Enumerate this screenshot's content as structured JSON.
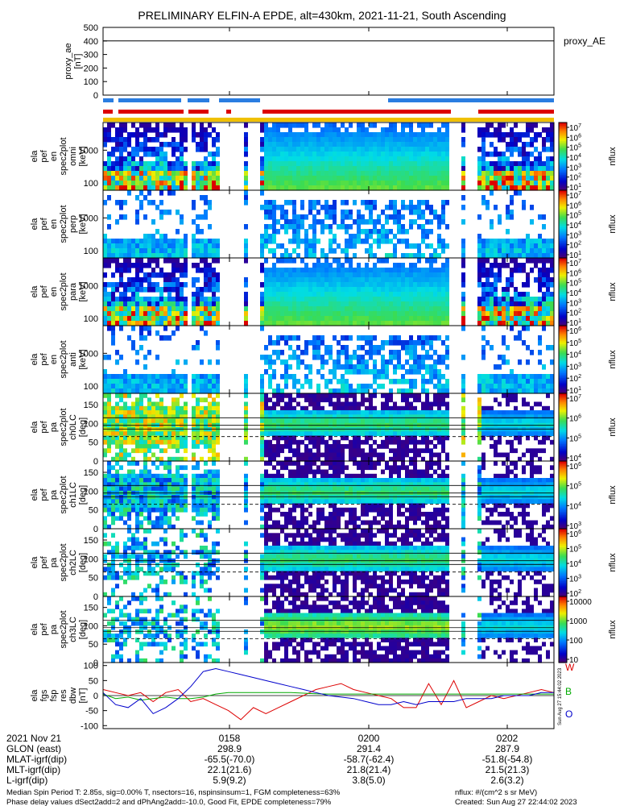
{
  "title": "PRELIMINARY ELFIN-A EPDE, alt=430km, 2021-11-21, South Ascending",
  "chart_data": {
    "type": "heatmap",
    "title": "PRELIMINARY ELFIN-A EPDE, alt=430km, 2021-11-21, South Ascending",
    "x_time_ticks": [
      "0158",
      "0200",
      "0202"
    ],
    "panels": [
      {
        "id": "proxy-ae",
        "type": "line",
        "ylabel": [
          "proxy_ae",
          "[nT]"
        ],
        "yticks": [
          "500",
          "400",
          "300",
          "200",
          "100",
          "0"
        ],
        "ylim": [
          0,
          500
        ],
        "legend": "proxy_AE",
        "values": [
          400,
          400,
          400,
          400,
          400,
          400,
          400,
          400,
          400,
          400
        ]
      },
      {
        "id": "en-omni",
        "ylabel": [
          "ela",
          "pef",
          "en",
          "spec2plot",
          "omni",
          "[keV]"
        ],
        "yticks": [
          "1000",
          "100"
        ],
        "log": true,
        "ylim": [
          60,
          7000
        ]
      },
      {
        "id": "en-perp",
        "ylabel": [
          "ela",
          "pef",
          "en",
          "spec2plot",
          "perp",
          "[keV]"
        ],
        "yticks": [
          "1000",
          "100"
        ],
        "log": true,
        "ylim": [
          60,
          7000
        ]
      },
      {
        "id": "en-para",
        "ylabel": [
          "ela",
          "pef",
          "en",
          "spec2plot",
          "para",
          "[keV]"
        ],
        "yticks": [
          "1000",
          "100"
        ],
        "log": true,
        "ylim": [
          60,
          7000
        ]
      },
      {
        "id": "en-anti",
        "ylabel": [
          "ela",
          "pef",
          "en",
          "spec2plot",
          "anti",
          "[keV]"
        ],
        "yticks": [
          "1000",
          "100"
        ],
        "log": true,
        "ylim": [
          60,
          7000
        ]
      },
      {
        "id": "ch0lc",
        "ylabel": [
          "ela",
          "pef",
          "pa",
          "spec2plot",
          "ch0LC",
          "[deg]"
        ],
        "yticks": [
          "150",
          "100",
          "50",
          "0"
        ],
        "ylim": [
          0,
          180
        ]
      },
      {
        "id": "ch1lc",
        "ylabel": [
          "ela",
          "pef",
          "pa",
          "spec2plot",
          "ch1LC",
          "[deg]"
        ],
        "yticks": [
          "150",
          "100",
          "50",
          "0"
        ],
        "ylim": [
          0,
          180
        ]
      },
      {
        "id": "ch2lc",
        "ylabel": [
          "ela",
          "pef",
          "pa",
          "spec2plot",
          "ch2LC",
          "[deg]"
        ],
        "yticks": [
          "150",
          "100",
          "50",
          "0"
        ],
        "ylim": [
          0,
          180
        ]
      },
      {
        "id": "ch3lc",
        "ylabel": [
          "ela",
          "pef",
          "pa",
          "spec2plot",
          "ch3LC",
          "[deg]"
        ],
        "yticks": [
          "150",
          "100",
          "50",
          "0"
        ],
        "ylim": [
          0,
          180
        ]
      },
      {
        "id": "fgs",
        "type": "line",
        "ylabel": [
          "ela",
          "fgs",
          "fsp",
          "res",
          "dbw",
          "[nT]"
        ],
        "yticks": [
          "100",
          "50",
          "0",
          "-50",
          "-100"
        ],
        "ylim": [
          -110,
          110
        ],
        "series": [
          {
            "name": "W",
            "color": "#dd0000",
            "values": [
              20,
              10,
              0,
              10,
              -20,
              10,
              20,
              -20,
              -10,
              -30,
              -50,
              -80,
              -40,
              -60,
              -40,
              -20,
              0,
              20,
              30,
              40,
              20,
              10,
              0,
              -10,
              -40,
              -40,
              40,
              -30,
              50,
              -40,
              -20,
              0,
              -10,
              0,
              10,
              20,
              10
            ]
          },
          {
            "name": "B",
            "color": "#00aa00",
            "values": [
              5,
              -10,
              -5,
              -15,
              -10,
              -5,
              -10,
              -10,
              -5,
              5,
              10,
              10,
              10,
              10,
              10,
              10,
              8,
              6,
              5,
              5,
              5,
              5,
              5,
              5,
              5,
              5,
              5,
              5,
              5,
              5,
              5,
              5,
              5,
              5,
              5,
              5,
              5
            ]
          },
          {
            "name": "O",
            "color": "#0000cc",
            "values": [
              10,
              -30,
              -40,
              -10,
              -60,
              -40,
              -10,
              30,
              80,
              90,
              80,
              70,
              60,
              50,
              40,
              30,
              20,
              10,
              0,
              -5,
              -10,
              -20,
              -30,
              -30,
              -20,
              -30,
              -20,
              -20,
              -20,
              -10,
              -10,
              -10,
              0,
              0,
              0,
              10,
              10
            ]
          }
        ]
      }
    ],
    "colorbars": [
      {
        "panel": "en-omni",
        "label": "nflux",
        "ticks": [
          "10^7",
          "10^6",
          "10^5",
          "10^4",
          "10^3",
          "10^2",
          "10^1"
        ]
      },
      {
        "panel": "en-perp",
        "label": "nflux",
        "ticks": [
          "10^7",
          "10^6",
          "10^5",
          "10^4",
          "10^3",
          "10^2",
          "10^1"
        ]
      },
      {
        "panel": "en-para",
        "label": "nflux",
        "ticks": [
          "10^7",
          "10^6",
          "10^5",
          "10^4",
          "10^3",
          "10^2",
          "10^1"
        ]
      },
      {
        "panel": "en-anti",
        "label": "nflux",
        "ticks": [
          "10^6",
          "10^5",
          "10^4",
          "10^3",
          "10^2",
          "10^1"
        ]
      },
      {
        "panel": "ch0lc",
        "label": "nflux",
        "ticks": [
          "10^7",
          "10^6",
          "10^5",
          "10^4"
        ]
      },
      {
        "panel": "ch1lc",
        "label": "nflux",
        "ticks": [
          "10^6",
          "10^5",
          "10^4",
          "10^3"
        ]
      },
      {
        "panel": "ch2lc",
        "label": "nflux",
        "ticks": [
          "10^6",
          "10^5",
          "10^4",
          "10^3",
          "10^2"
        ]
      },
      {
        "panel": "ch3lc",
        "label": "nflux",
        "ticks": [
          "10000",
          "1000",
          "100",
          "10"
        ]
      }
    ],
    "footer_table": {
      "row_labels": [
        "2021 Nov 21",
        "GLON (east)",
        "MLAT-igrf(dip)",
        "MLT-igrf(dip)",
        "L-igrf(dip)"
      ],
      "columns": [
        {
          "time": "0158",
          "glon": "298.9",
          "mlat": "-65.5(-70.0)",
          "mlt": "22.1(21.6)",
          "l": "5.9(9.2)"
        },
        {
          "time": "0200",
          "glon": "291.4",
          "mlat": "-58.7(-62.4)",
          "mlt": "21.8(21.4)",
          "l": "3.8(5.0)"
        },
        {
          "time": "0202",
          "glon": "287.9",
          "mlat": "-51.8(-54.8)",
          "mlt": "21.5(21.3)",
          "l": "2.6(3.2)"
        }
      ]
    }
  },
  "footer": {
    "line1_left": "Median Spin Period T: 2.85s, sig=0.00% T, nsectors=16, nspinsinsum=1, FGM completeness=63%",
    "line2_left": "Phase delay values dSect2add=2 and dPhAng2add=-10.0, Good Fit, EPDE completeness=79%",
    "line1_right": "nflux: #/(cm^2 s sr MeV)",
    "line2_right": "Created: Sun Aug 27 22:44:02 2023",
    "side_stamp": "Sun Aug 27 15:44:02 2023"
  }
}
